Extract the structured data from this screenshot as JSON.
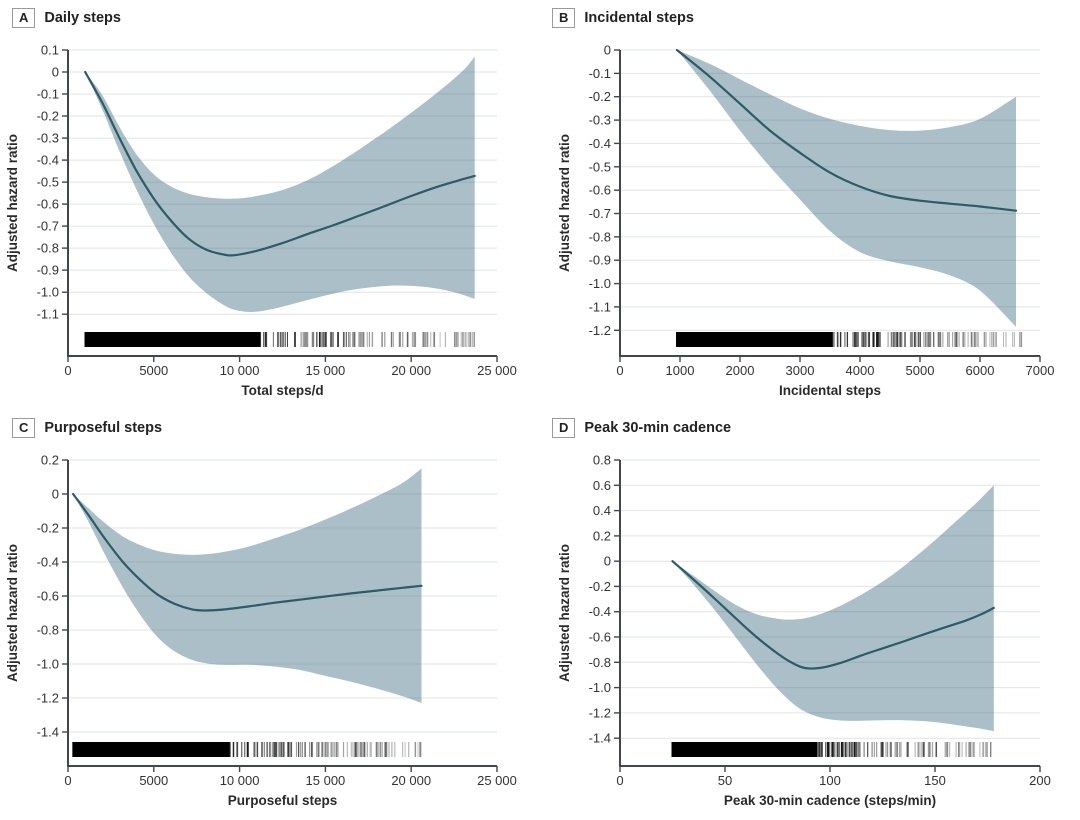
{
  "style": {
    "band_color": "#aabfc7",
    "curve_color": "#2d5b66",
    "grid_color": "rgba(95,105,110,0.18)",
    "axis_color": "#41484d",
    "text_color": "#333333",
    "rug_color": "#000000"
  },
  "chart_data": [
    {
      "type": "line",
      "label": "A",
      "title": "Daily steps",
      "xlabel": "Total steps/d",
      "ylabel": "Adjusted hazard ratio",
      "xlim": [
        0,
        25000
      ],
      "ylim_draw": [
        -1.29,
        0.1
      ],
      "xticks": [
        [
          0,
          "0"
        ],
        [
          5000,
          "5000"
        ],
        [
          10000,
          "10 000"
        ],
        [
          15000,
          "15 000"
        ],
        [
          20000,
          "20 000"
        ],
        [
          25000,
          "25 000"
        ]
      ],
      "yticks": [
        [
          0.1,
          "0.1"
        ],
        [
          0,
          "0"
        ],
        [
          -0.1,
          "-0.1"
        ],
        [
          -0.2,
          "-0.2"
        ],
        [
          -0.3,
          "-0.3"
        ],
        [
          -0.4,
          "-0.4"
        ],
        [
          -0.5,
          "-0.5"
        ],
        [
          -0.6,
          "-0.6"
        ],
        [
          -0.7,
          "-0.7"
        ],
        [
          -0.8,
          "-0.8"
        ],
        [
          -0.9,
          "-0.9"
        ],
        [
          -1.0,
          "-1.0"
        ],
        [
          -1.1,
          "-1.1"
        ]
      ],
      "curve": [
        [
          1000,
          0
        ],
        [
          2000,
          -0.14
        ],
        [
          3000,
          -0.3
        ],
        [
          4000,
          -0.45
        ],
        [
          5000,
          -0.575
        ],
        [
          6000,
          -0.675
        ],
        [
          7000,
          -0.755
        ],
        [
          8000,
          -0.805
        ],
        [
          9000,
          -0.828
        ],
        [
          9700,
          -0.832
        ],
        [
          11000,
          -0.812
        ],
        [
          12500,
          -0.777
        ],
        [
          14000,
          -0.735
        ],
        [
          15500,
          -0.695
        ],
        [
          17000,
          -0.652
        ],
        [
          18500,
          -0.608
        ],
        [
          20000,
          -0.563
        ],
        [
          21500,
          -0.522
        ],
        [
          23000,
          -0.487
        ],
        [
          23700,
          -0.472
        ]
      ],
      "band_upper": [
        [
          1000,
          0
        ],
        [
          2000,
          -0.105
        ],
        [
          3000,
          -0.25
        ],
        [
          4000,
          -0.375
        ],
        [
          5000,
          -0.465
        ],
        [
          6000,
          -0.52
        ],
        [
          7000,
          -0.552
        ],
        [
          8000,
          -0.568
        ],
        [
          9000,
          -0.575
        ],
        [
          10000,
          -0.574
        ],
        [
          11000,
          -0.563
        ],
        [
          12500,
          -0.536
        ],
        [
          14000,
          -0.49
        ],
        [
          15500,
          -0.425
        ],
        [
          17000,
          -0.35
        ],
        [
          18500,
          -0.27
        ],
        [
          20000,
          -0.185
        ],
        [
          21500,
          -0.095
        ],
        [
          23000,
          0.005
        ],
        [
          23700,
          0.07
        ]
      ],
      "band_lower": [
        [
          1000,
          0
        ],
        [
          2000,
          -0.17
        ],
        [
          3000,
          -0.36
        ],
        [
          4000,
          -0.535
        ],
        [
          5000,
          -0.69
        ],
        [
          6000,
          -0.82
        ],
        [
          7000,
          -0.925
        ],
        [
          8000,
          -1.0
        ],
        [
          9000,
          -1.055
        ],
        [
          9700,
          -1.08
        ],
        [
          10700,
          -1.09
        ],
        [
          12000,
          -1.075
        ],
        [
          13500,
          -1.045
        ],
        [
          15000,
          -1.015
        ],
        [
          16500,
          -0.99
        ],
        [
          18000,
          -0.975
        ],
        [
          19500,
          -0.97
        ],
        [
          21000,
          -0.978
        ],
        [
          22500,
          -1.0
        ],
        [
          23700,
          -1.03
        ]
      ],
      "rug": {
        "min": 1000,
        "max": 23700
      }
    },
    {
      "type": "line",
      "label": "B",
      "title": "Incidental steps",
      "xlabel": "Incidental steps",
      "ylabel": "Adjusted hazard ratio",
      "xlim": [
        0,
        7000
      ],
      "ylim_draw": [
        -1.31,
        0
      ],
      "xticks": [
        [
          0,
          "0"
        ],
        [
          1000,
          "1000"
        ],
        [
          2000,
          "2000"
        ],
        [
          3000,
          "3000"
        ],
        [
          4000,
          "4000"
        ],
        [
          5000,
          "5000"
        ],
        [
          6000,
          "6000"
        ],
        [
          7000,
          "7000"
        ]
      ],
      "yticks": [
        [
          0,
          "0"
        ],
        [
          -0.1,
          "-0.1"
        ],
        [
          -0.2,
          "-0.2"
        ],
        [
          -0.3,
          "-0.3"
        ],
        [
          -0.4,
          "-0.4"
        ],
        [
          -0.5,
          "-0.5"
        ],
        [
          -0.6,
          "-0.6"
        ],
        [
          -0.7,
          "-0.7"
        ],
        [
          -0.8,
          "-0.8"
        ],
        [
          -0.9,
          "-0.9"
        ],
        [
          -1.0,
          "-1.0"
        ],
        [
          -1.1,
          "-1.1"
        ],
        [
          -1.2,
          "-1.2"
        ]
      ],
      "curve": [
        [
          950,
          0
        ],
        [
          1500,
          -0.115
        ],
        [
          2000,
          -0.23
        ],
        [
          2500,
          -0.345
        ],
        [
          3000,
          -0.44
        ],
        [
          3500,
          -0.525
        ],
        [
          4000,
          -0.585
        ],
        [
          4500,
          -0.625
        ],
        [
          5000,
          -0.645
        ],
        [
          5500,
          -0.658
        ],
        [
          6000,
          -0.67
        ],
        [
          6600,
          -0.688
        ]
      ],
      "band_upper": [
        [
          950,
          0
        ],
        [
          1500,
          -0.06
        ],
        [
          2000,
          -0.125
        ],
        [
          2500,
          -0.19
        ],
        [
          3000,
          -0.25
        ],
        [
          3500,
          -0.295
        ],
        [
          4000,
          -0.325
        ],
        [
          4500,
          -0.343
        ],
        [
          5000,
          -0.345
        ],
        [
          5500,
          -0.33
        ],
        [
          6000,
          -0.295
        ],
        [
          6600,
          -0.2
        ]
      ],
      "band_lower": [
        [
          950,
          0
        ],
        [
          1500,
          -0.175
        ],
        [
          2000,
          -0.345
        ],
        [
          2500,
          -0.5
        ],
        [
          3000,
          -0.64
        ],
        [
          3500,
          -0.775
        ],
        [
          4000,
          -0.865
        ],
        [
          4500,
          -0.905
        ],
        [
          5000,
          -0.93
        ],
        [
          5500,
          -0.965
        ],
        [
          6000,
          -1.03
        ],
        [
          6600,
          -1.185
        ]
      ],
      "rug": {
        "min": 950,
        "max": 6700
      }
    },
    {
      "type": "line",
      "label": "C",
      "title": "Purposeful steps",
      "xlabel": "Purposeful steps",
      "ylabel": "Adjusted hazard ratio",
      "xlim": [
        0,
        25000
      ],
      "ylim_draw": [
        -1.6,
        0.2
      ],
      "xticks": [
        [
          0,
          "0"
        ],
        [
          5000,
          "5000"
        ],
        [
          10000,
          "10 000"
        ],
        [
          15000,
          "15 000"
        ],
        [
          20000,
          "20 000"
        ],
        [
          25000,
          "25 000"
        ]
      ],
      "yticks": [
        [
          0.2,
          "0.2"
        ],
        [
          0,
          "0"
        ],
        [
          -0.2,
          "-0.2"
        ],
        [
          -0.4,
          "-0.4"
        ],
        [
          -0.6,
          "-0.6"
        ],
        [
          -0.8,
          "-0.8"
        ],
        [
          -1.0,
          "-1.0"
        ],
        [
          -1.2,
          "-1.2"
        ],
        [
          -1.4,
          "-1.4"
        ]
      ],
      "curve": [
        [
          300,
          0
        ],
        [
          1200,
          -0.125
        ],
        [
          2200,
          -0.27
        ],
        [
          3200,
          -0.4
        ],
        [
          4200,
          -0.505
        ],
        [
          5200,
          -0.59
        ],
        [
          6200,
          -0.645
        ],
        [
          7200,
          -0.678
        ],
        [
          8000,
          -0.685
        ],
        [
          9000,
          -0.68
        ],
        [
          10500,
          -0.662
        ],
        [
          12000,
          -0.64
        ],
        [
          13500,
          -0.622
        ],
        [
          15000,
          -0.603
        ],
        [
          16500,
          -0.585
        ],
        [
          18000,
          -0.568
        ],
        [
          19500,
          -0.552
        ],
        [
          20600,
          -0.54
        ]
      ],
      "band_upper": [
        [
          300,
          0
        ],
        [
          1200,
          -0.085
        ],
        [
          2200,
          -0.175
        ],
        [
          3200,
          -0.25
        ],
        [
          4200,
          -0.3
        ],
        [
          5200,
          -0.335
        ],
        [
          6200,
          -0.352
        ],
        [
          7200,
          -0.358
        ],
        [
          8000,
          -0.355
        ],
        [
          9000,
          -0.342
        ],
        [
          10500,
          -0.31
        ],
        [
          12000,
          -0.262
        ],
        [
          13500,
          -0.21
        ],
        [
          15000,
          -0.15
        ],
        [
          16500,
          -0.085
        ],
        [
          18000,
          -0.013
        ],
        [
          19500,
          0.065
        ],
        [
          20600,
          0.15
        ]
      ],
      "band_lower": [
        [
          300,
          0
        ],
        [
          1200,
          -0.165
        ],
        [
          2200,
          -0.365
        ],
        [
          3200,
          -0.55
        ],
        [
          4200,
          -0.71
        ],
        [
          5200,
          -0.84
        ],
        [
          6200,
          -0.925
        ],
        [
          7200,
          -0.975
        ],
        [
          8000,
          -0.995
        ],
        [
          9000,
          -1.005
        ],
        [
          10500,
          -1.005
        ],
        [
          12000,
          -1.015
        ],
        [
          13500,
          -1.035
        ],
        [
          15000,
          -1.07
        ],
        [
          16500,
          -1.105
        ],
        [
          18000,
          -1.145
        ],
        [
          19500,
          -1.19
        ],
        [
          20600,
          -1.23
        ]
      ],
      "rug": {
        "min": 300,
        "max": 20600
      }
    },
    {
      "type": "line",
      "label": "D",
      "title": "Peak 30-min cadence",
      "xlabel": "Peak 30-min cadence (steps/min)",
      "ylabel": "Adjusted hazard ratio",
      "xlim": [
        0,
        200
      ],
      "ylim_draw": [
        -1.62,
        0.8
      ],
      "xticks": [
        [
          0,
          "0"
        ],
        [
          50,
          "50"
        ],
        [
          100,
          "100"
        ],
        [
          150,
          "150"
        ],
        [
          200,
          "200"
        ]
      ],
      "yticks": [
        [
          0.8,
          "0.8"
        ],
        [
          0.6,
          "0.6"
        ],
        [
          0.4,
          "0.4"
        ],
        [
          0.2,
          "0.2"
        ],
        [
          0,
          "0"
        ],
        [
          -0.2,
          "-0.2"
        ],
        [
          -0.4,
          "-0.4"
        ],
        [
          -0.6,
          "-0.6"
        ],
        [
          -0.8,
          "-0.8"
        ],
        [
          -1.0,
          "-1.0"
        ],
        [
          -1.2,
          "-1.2"
        ],
        [
          -1.4,
          "-1.4"
        ]
      ],
      "curve": [
        [
          25,
          0
        ],
        [
          35,
          -0.145
        ],
        [
          45,
          -0.295
        ],
        [
          55,
          -0.45
        ],
        [
          65,
          -0.6
        ],
        [
          75,
          -0.73
        ],
        [
          82,
          -0.805
        ],
        [
          88,
          -0.845
        ],
        [
          95,
          -0.845
        ],
        [
          105,
          -0.805
        ],
        [
          115,
          -0.745
        ],
        [
          125,
          -0.69
        ],
        [
          135,
          -0.635
        ],
        [
          145,
          -0.578
        ],
        [
          155,
          -0.522
        ],
        [
          165,
          -0.468
        ],
        [
          172,
          -0.42
        ],
        [
          178,
          -0.37
        ]
      ],
      "band_upper": [
        [
          25,
          0
        ],
        [
          35,
          -0.115
        ],
        [
          45,
          -0.235
        ],
        [
          55,
          -0.345
        ],
        [
          65,
          -0.42
        ],
        [
          75,
          -0.455
        ],
        [
          82,
          -0.462
        ],
        [
          90,
          -0.445
        ],
        [
          100,
          -0.39
        ],
        [
          110,
          -0.31
        ],
        [
          120,
          -0.215
        ],
        [
          130,
          -0.105
        ],
        [
          140,
          0.025
        ],
        [
          150,
          0.165
        ],
        [
          160,
          0.315
        ],
        [
          170,
          0.465
        ],
        [
          178,
          0.6
        ]
      ],
      "band_lower": [
        [
          25,
          0
        ],
        [
          35,
          -0.185
        ],
        [
          45,
          -0.385
        ],
        [
          55,
          -0.6
        ],
        [
          65,
          -0.815
        ],
        [
          75,
          -1.01
        ],
        [
          85,
          -1.16
        ],
        [
          95,
          -1.235
        ],
        [
          105,
          -1.26
        ],
        [
          115,
          -1.262
        ],
        [
          125,
          -1.258
        ],
        [
          135,
          -1.258
        ],
        [
          145,
          -1.265
        ],
        [
          155,
          -1.283
        ],
        [
          165,
          -1.308
        ],
        [
          172,
          -1.325
        ],
        [
          178,
          -1.345
        ]
      ],
      "rug": {
        "min": 25,
        "max": 178
      }
    }
  ]
}
